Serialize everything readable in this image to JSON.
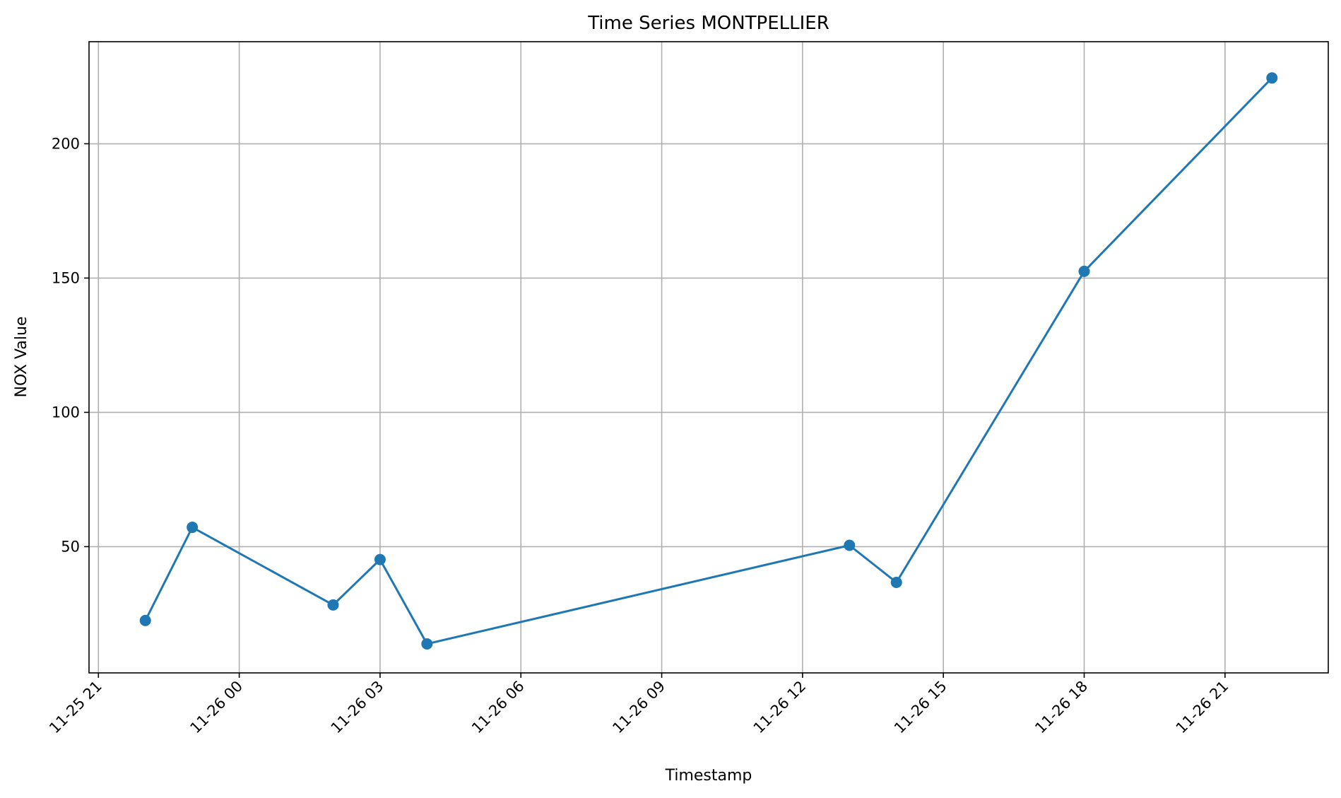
{
  "chart_data": {
    "type": "line",
    "title": "Time Series MONTPELLIER",
    "xlabel": "Timestamp",
    "ylabel": "NOX Value",
    "x_ticks": [
      "2023-11-25T21:00",
      "2023-11-26T00:00",
      "2023-11-26T03:00",
      "2023-11-26T06:00",
      "2023-11-26T09:00",
      "2023-11-26T12:00",
      "2023-11-26T15:00",
      "2023-11-26T18:00",
      "2023-11-26T21:00"
    ],
    "x_tick_labels": [
      "11-25 21",
      "11-26 00",
      "11-26 03",
      "11-26 06",
      "11-26 09",
      "11-26 12",
      "11-26 15",
      "11-26 18",
      "11-26 21"
    ],
    "y_ticks": [
      50,
      100,
      150,
      200
    ],
    "y_tick_labels": [
      "50",
      "100",
      "150",
      "200"
    ],
    "xlim": [
      "2023-11-25T20:48",
      "2023-11-26T23:12"
    ],
    "ylim": [
      3,
      238
    ],
    "grid": true,
    "line_color": "#1f77b4",
    "series": [
      {
        "x": [
          "2023-11-25T22:00",
          "2023-11-25T23:00",
          "2023-11-26T02:00",
          "2023-11-26T03:00",
          "2023-11-26T04:00",
          "2023-11-26T13:00",
          "2023-11-26T14:00",
          "2023-11-26T18:00",
          "2023-11-26T22:00"
        ],
        "y": [
          22.5,
          57.2,
          28.3,
          45.2,
          13.8,
          50.5,
          36.7,
          152.5,
          224.5
        ]
      }
    ]
  }
}
